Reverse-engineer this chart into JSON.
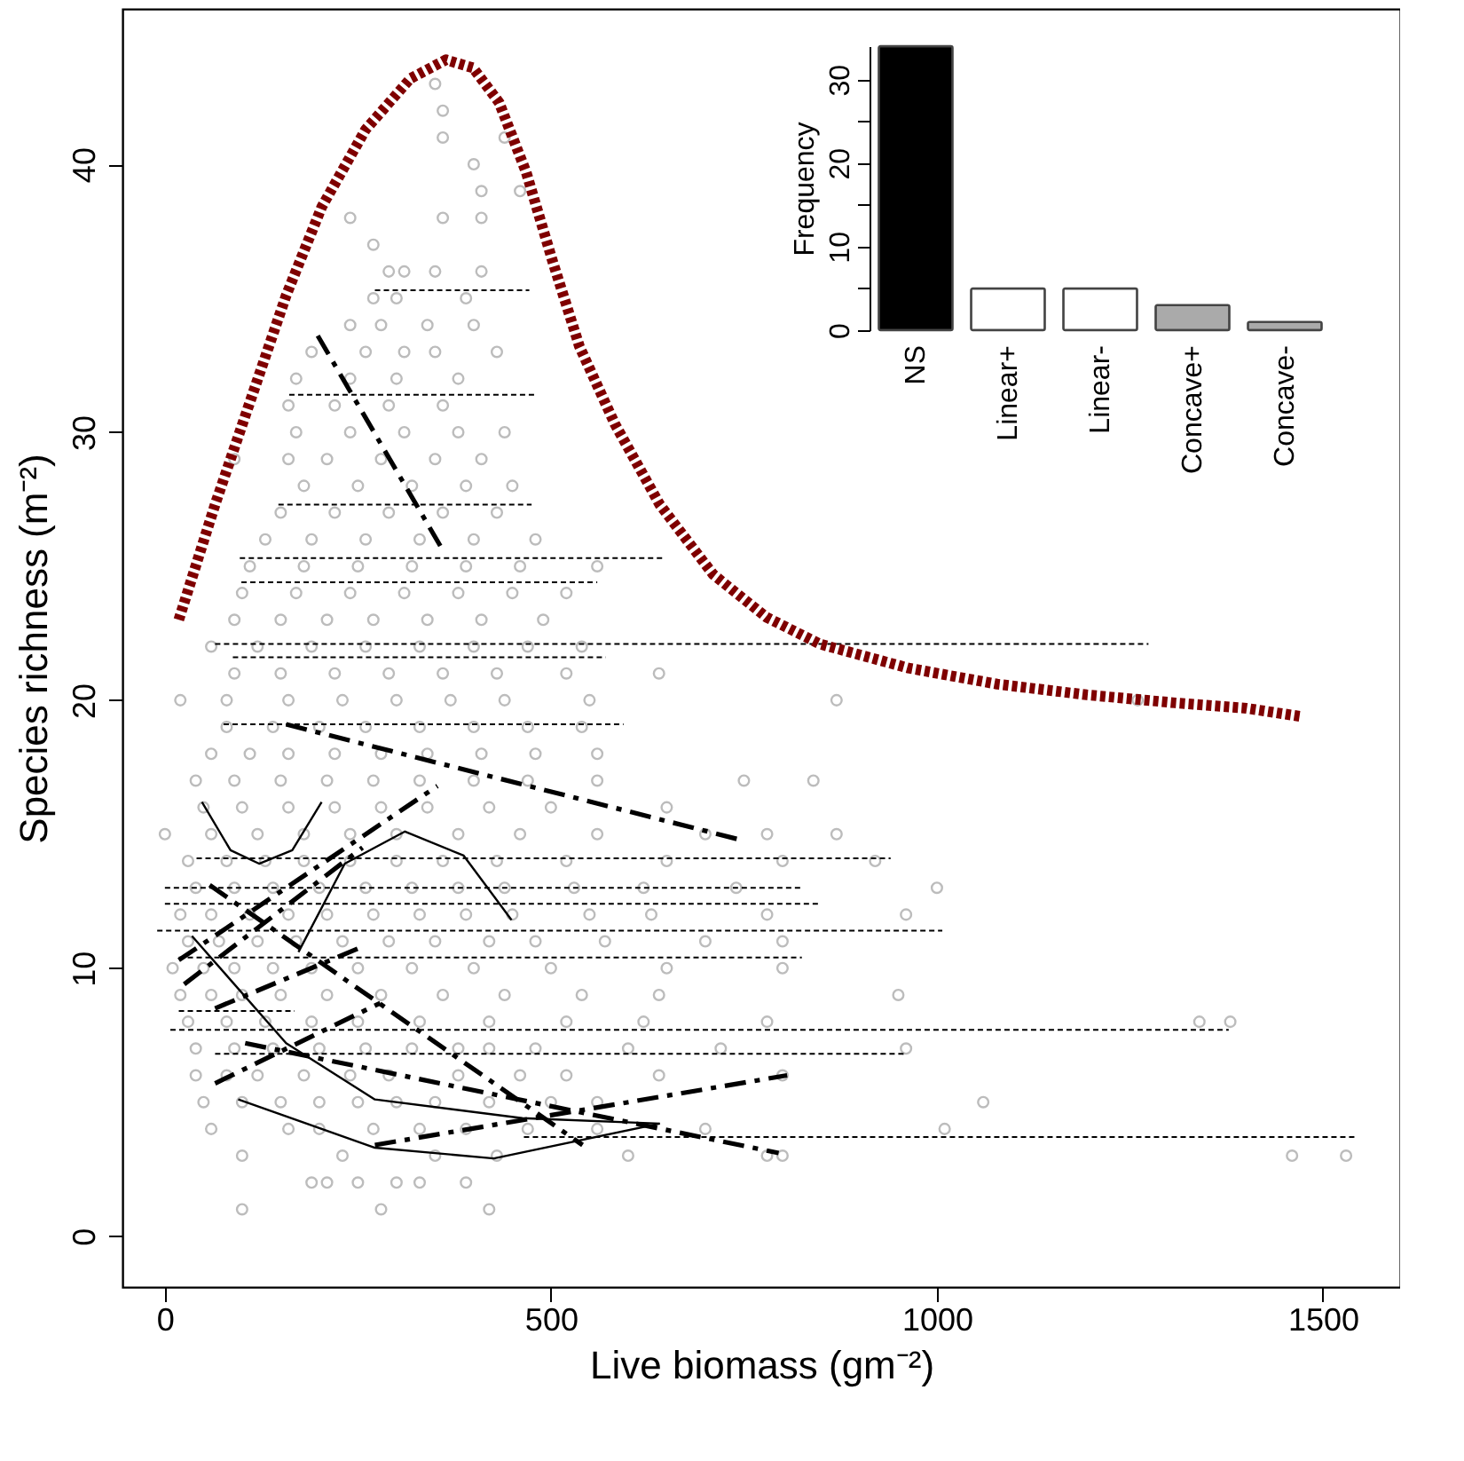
{
  "chart_data": [
    {
      "type": "scatter",
      "xlabel": "Live biomass  (gm⁻²)",
      "ylabel": "Species richness (m⁻²)",
      "xlim": [
        -55,
        1600
      ],
      "ylim": [
        -1.9,
        45.8
      ],
      "xticks": [
        0,
        500,
        1000,
        1500
      ],
      "yticks": [
        0,
        10,
        20,
        30,
        40
      ],
      "series": [
        {
          "type": "scatter",
          "marker": "circle",
          "color": "#a0a0a0",
          "x": [
            100,
            280,
            420
          ],
          "values": [
            1,
            1,
            1
          ]
        },
        {
          "type": "scatter",
          "marker": "circle",
          "color": "#a0a0a0",
          "x": [
            190,
            210,
            250,
            300,
            330,
            390
          ],
          "values": [
            2,
            2,
            2,
            2,
            2,
            2
          ]
        },
        {
          "type": "scatter",
          "marker": "circle",
          "color": "#a0a0a0",
          "x": [
            100,
            230,
            350,
            430,
            600,
            780,
            800,
            1460,
            1530
          ],
          "values": [
            3,
            3,
            3,
            3,
            3,
            3,
            3,
            3,
            3
          ]
        },
        {
          "type": "scatter",
          "marker": "circle",
          "color": "#a0a0a0",
          "x": [
            60,
            160,
            200,
            270,
            330,
            390,
            470,
            560,
            700,
            1010
          ],
          "values": [
            4,
            4,
            4,
            4,
            4,
            4,
            4,
            4,
            4,
            4
          ]
        },
        {
          "type": "scatter",
          "marker": "circle",
          "color": "#a0a0a0",
          "x": [
            50,
            100,
            150,
            200,
            250,
            300,
            350,
            420,
            500,
            560,
            1060
          ],
          "values": [
            5,
            5,
            5,
            5,
            5,
            5,
            5,
            5,
            5,
            5,
            5
          ]
        },
        {
          "type": "scatter",
          "marker": "circle",
          "color": "#a0a0a0",
          "x": [
            40,
            80,
            120,
            180,
            240,
            290,
            380,
            460,
            520,
            640,
            800
          ],
          "values": [
            6,
            6,
            6,
            6,
            6,
            6,
            6,
            6,
            6,
            6,
            6
          ]
        },
        {
          "type": "scatter",
          "marker": "circle",
          "color": "#a0a0a0",
          "x": [
            40,
            90,
            140,
            200,
            260,
            320,
            380,
            420,
            480,
            600,
            720,
            960
          ],
          "values": [
            7,
            7,
            7,
            7,
            7,
            7,
            7,
            7,
            7,
            7,
            7,
            7
          ]
        },
        {
          "type": "scatter",
          "marker": "circle",
          "color": "#a0a0a0",
          "x": [
            30,
            80,
            130,
            190,
            250,
            330,
            420,
            520,
            620,
            780,
            1340,
            1380
          ],
          "values": [
            8,
            8,
            8,
            8,
            8,
            8,
            8,
            8,
            8,
            8,
            8,
            8
          ]
        },
        {
          "type": "scatter",
          "marker": "circle",
          "color": "#a0a0a0",
          "x": [
            20,
            60,
            100,
            150,
            210,
            280,
            360,
            440,
            540,
            640,
            950
          ],
          "values": [
            9,
            9,
            9,
            9,
            9,
            9,
            9,
            9,
            9,
            9,
            9
          ]
        },
        {
          "type": "scatter",
          "marker": "circle",
          "color": "#a0a0a0",
          "x": [
            10,
            50,
            90,
            140,
            190,
            250,
            320,
            400,
            500,
            650,
            800
          ],
          "values": [
            10,
            10,
            10,
            10,
            10,
            10,
            10,
            10,
            10,
            10,
            10
          ]
        },
        {
          "type": "scatter",
          "marker": "circle",
          "color": "#a0a0a0",
          "x": [
            30,
            70,
            120,
            170,
            230,
            290,
            350,
            420,
            480,
            570,
            700,
            800
          ],
          "values": [
            11,
            11,
            11,
            11,
            11,
            11,
            11,
            11,
            11,
            11,
            11,
            11
          ]
        },
        {
          "type": "scatter",
          "marker": "circle",
          "color": "#a0a0a0",
          "x": [
            20,
            60,
            110,
            160,
            210,
            270,
            330,
            390,
            450,
            550,
            630,
            780,
            960
          ],
          "values": [
            12,
            12,
            12,
            12,
            12,
            12,
            12,
            12,
            12,
            12,
            12,
            12,
            12
          ]
        },
        {
          "type": "scatter",
          "marker": "circle",
          "color": "#a0a0a0",
          "x": [
            40,
            90,
            140,
            200,
            260,
            320,
            380,
            440,
            530,
            620,
            740,
            1000
          ],
          "values": [
            13,
            13,
            13,
            13,
            13,
            13,
            13,
            13,
            13,
            13,
            13,
            13
          ]
        },
        {
          "type": "scatter",
          "marker": "circle",
          "color": "#a0a0a0",
          "x": [
            30,
            80,
            130,
            180,
            240,
            300,
            360,
            430,
            520,
            650,
            800,
            920
          ],
          "values": [
            14,
            14,
            14,
            14,
            14,
            14,
            14,
            14,
            14,
            14,
            14,
            14
          ]
        },
        {
          "type": "scatter",
          "marker": "circle",
          "color": "#a0a0a0",
          "x": [
            0,
            60,
            120,
            180,
            240,
            300,
            380,
            460,
            560,
            700,
            780,
            870
          ],
          "values": [
            15,
            15,
            15,
            15,
            15,
            15,
            15,
            15,
            15,
            15,
            15,
            15
          ]
        },
        {
          "type": "scatter",
          "marker": "circle",
          "color": "#a0a0a0",
          "x": [
            50,
            100,
            160,
            220,
            280,
            340,
            420,
            500,
            650
          ],
          "values": [
            16,
            16,
            16,
            16,
            16,
            16,
            16,
            16,
            16
          ]
        },
        {
          "type": "scatter",
          "marker": "circle",
          "color": "#a0a0a0",
          "x": [
            40,
            90,
            150,
            210,
            270,
            330,
            400,
            470,
            560,
            750,
            840
          ],
          "values": [
            17,
            17,
            17,
            17,
            17,
            17,
            17,
            17,
            17,
            17,
            17
          ]
        },
        {
          "type": "scatter",
          "marker": "circle",
          "color": "#a0a0a0",
          "x": [
            60,
            110,
            160,
            220,
            280,
            340,
            410,
            480,
            560
          ],
          "values": [
            18,
            18,
            18,
            18,
            18,
            18,
            18,
            18,
            18
          ]
        },
        {
          "type": "scatter",
          "marker": "circle",
          "color": "#a0a0a0",
          "x": [
            80,
            140,
            200,
            260,
            330,
            400,
            470,
            540
          ],
          "values": [
            19,
            19,
            19,
            19,
            19,
            19,
            19,
            19
          ]
        },
        {
          "type": "scatter",
          "marker": "circle",
          "color": "#a0a0a0",
          "x": [
            20,
            80,
            160,
            230,
            300,
            370,
            440,
            550,
            870,
            1260
          ],
          "values": [
            20,
            20,
            20,
            20,
            20,
            20,
            20,
            20,
            20,
            20
          ]
        },
        {
          "type": "scatter",
          "marker": "circle",
          "color": "#a0a0a0",
          "x": [
            90,
            150,
            220,
            290,
            360,
            430,
            520,
            640
          ],
          "values": [
            21,
            21,
            21,
            21,
            21,
            21,
            21,
            21
          ]
        },
        {
          "type": "scatter",
          "marker": "circle",
          "color": "#a0a0a0",
          "x": [
            60,
            120,
            190,
            260,
            330,
            400,
            470,
            540
          ],
          "values": [
            22,
            22,
            22,
            22,
            22,
            22,
            22,
            22
          ]
        },
        {
          "type": "scatter",
          "marker": "circle",
          "color": "#a0a0a0",
          "x": [
            90,
            150,
            210,
            270,
            340,
            410,
            490
          ],
          "values": [
            23,
            23,
            23,
            23,
            23,
            23,
            23
          ]
        },
        {
          "type": "scatter",
          "marker": "circle",
          "color": "#a0a0a0",
          "x": [
            100,
            170,
            240,
            310,
            380,
            450,
            520
          ],
          "values": [
            24,
            24,
            24,
            24,
            24,
            24,
            24
          ]
        },
        {
          "type": "scatter",
          "marker": "circle",
          "color": "#a0a0a0",
          "x": [
            110,
            180,
            250,
            320,
            390,
            460,
            560
          ],
          "values": [
            25,
            25,
            25,
            25,
            25,
            25,
            25
          ]
        },
        {
          "type": "scatter",
          "marker": "circle",
          "color": "#a0a0a0",
          "x": [
            130,
            190,
            260,
            330,
            400,
            480
          ],
          "values": [
            26,
            26,
            26,
            26,
            26,
            26
          ]
        },
        {
          "type": "scatter",
          "marker": "circle",
          "color": "#a0a0a0",
          "x": [
            150,
            220,
            290,
            360,
            430
          ],
          "values": [
            27,
            27,
            27,
            27,
            27
          ]
        },
        {
          "type": "scatter",
          "marker": "circle",
          "color": "#a0a0a0",
          "x": [
            180,
            250,
            320,
            390,
            450
          ],
          "values": [
            28,
            28,
            28,
            28,
            28
          ]
        },
        {
          "type": "scatter",
          "marker": "circle",
          "color": "#a0a0a0",
          "x": [
            90,
            160,
            210,
            280,
            350,
            410
          ],
          "values": [
            29,
            29,
            29,
            29,
            29,
            29
          ]
        },
        {
          "type": "scatter",
          "marker": "circle",
          "color": "#a0a0a0",
          "x": [
            170,
            240,
            310,
            380,
            440
          ],
          "values": [
            30,
            30,
            30,
            30,
            30
          ]
        },
        {
          "type": "scatter",
          "marker": "circle",
          "color": "#a0a0a0",
          "x": [
            160,
            220,
            290,
            360
          ],
          "values": [
            31,
            31,
            31,
            31
          ]
        },
        {
          "type": "scatter",
          "marker": "circle",
          "color": "#a0a0a0",
          "x": [
            170,
            240,
            300,
            380
          ],
          "values": [
            32,
            32,
            32,
            32
          ]
        },
        {
          "type": "scatter",
          "marker": "circle",
          "color": "#a0a0a0",
          "x": [
            190,
            260,
            310,
            350,
            430
          ],
          "values": [
            33,
            33,
            33,
            33,
            33
          ]
        },
        {
          "type": "scatter",
          "marker": "circle",
          "color": "#a0a0a0",
          "x": [
            240,
            280,
            340,
            400
          ],
          "values": [
            34,
            34,
            34,
            34
          ]
        },
        {
          "type": "scatter",
          "marker": "circle",
          "color": "#a0a0a0",
          "x": [
            270,
            300,
            390
          ],
          "values": [
            35,
            35,
            35
          ]
        },
        {
          "type": "scatter",
          "marker": "circle",
          "color": "#a0a0a0",
          "x": [
            290,
            310,
            350,
            410
          ],
          "values": [
            36,
            36,
            36,
            36
          ]
        },
        {
          "type": "scatter",
          "marker": "circle",
          "color": "#a0a0a0",
          "x": [
            270
          ],
          "values": [
            37
          ]
        },
        {
          "type": "scatter",
          "marker": "circle",
          "color": "#a0a0a0",
          "x": [
            240,
            360,
            410
          ],
          "values": [
            38,
            38,
            38
          ]
        },
        {
          "type": "scatter",
          "marker": "circle",
          "color": "#a0a0a0",
          "x": [
            410,
            460
          ],
          "values": [
            39,
            39
          ]
        },
        {
          "type": "scatter",
          "marker": "circle",
          "color": "#a0a0a0",
          "x": [
            400
          ],
          "values": [
            40
          ]
        },
        {
          "type": "scatter",
          "marker": "circle",
          "color": "#a0a0a0",
          "x": [
            360,
            440
          ],
          "values": [
            41,
            41
          ]
        },
        {
          "type": "scatter",
          "marker": "circle",
          "color": "#a0a0a0",
          "x": [
            360
          ],
          "values": [
            42
          ]
        },
        {
          "type": "scatter",
          "marker": "circle",
          "color": "#a0a0a0",
          "x": [
            350
          ],
          "values": [
            43
          ]
        },
        {
          "type": "line",
          "color": "#000000",
          "line_style": "dotted",
          "x": [
            272,
            472
          ],
          "values": [
            35.3,
            35.3
          ]
        },
        {
          "type": "line",
          "color": "#000000",
          "line_style": "dotted",
          "x": [
            161,
            479
          ],
          "values": [
            31.4,
            31.4
          ]
        },
        {
          "type": "line",
          "color": "#000000",
          "line_style": "dotted",
          "x": [
            147,
            475
          ],
          "values": [
            27.3,
            27.3
          ]
        },
        {
          "type": "line",
          "color": "#000000",
          "line_style": "dotted",
          "x": [
            97,
            645
          ],
          "values": [
            25.3,
            25.3
          ]
        },
        {
          "type": "line",
          "color": "#000000",
          "line_style": "dotted",
          "x": [
            99,
            560
          ],
          "values": [
            24.4,
            24.4
          ]
        },
        {
          "type": "line",
          "color": "#000000",
          "line_style": "dotted",
          "x": [
            65,
            1274
          ],
          "values": [
            22.1,
            22.1
          ]
        },
        {
          "type": "line",
          "color": "#000000",
          "line_style": "dotted",
          "x": [
            88,
            571
          ],
          "values": [
            21.6,
            21.6
          ]
        },
        {
          "type": "line",
          "color": "#000000",
          "line_style": "dotted",
          "x": [
            76,
            594
          ],
          "values": [
            19.1,
            19.1
          ]
        },
        {
          "type": "line",
          "color": "#000000",
          "line_style": "dotted",
          "x": [
            41,
            940
          ],
          "values": [
            14.1,
            14.1
          ]
        },
        {
          "type": "line",
          "color": "#000000",
          "line_style": "dotted",
          "x": [
            0,
            825
          ],
          "values": [
            13.0,
            13.0
          ]
        },
        {
          "type": "line",
          "color": "#000000",
          "line_style": "dotted",
          "x": [
            0,
            850
          ],
          "values": [
            12.4,
            12.4
          ]
        },
        {
          "type": "line",
          "color": "#000000",
          "line_style": "dotted",
          "x": [
            -10,
            1007
          ],
          "values": [
            11.4,
            11.4
          ]
        },
        {
          "type": "line",
          "color": "#000000",
          "line_style": "dotted",
          "x": [
            18,
            825
          ],
          "values": [
            10.4,
            10.4
          ]
        },
        {
          "type": "line",
          "color": "#000000",
          "line_style": "dotted",
          "x": [
            18,
            168
          ],
          "values": [
            8.4,
            8.4
          ]
        },
        {
          "type": "line",
          "color": "#000000",
          "line_style": "dotted",
          "x": [
            7,
            1378
          ],
          "values": [
            7.7,
            7.7
          ]
        },
        {
          "type": "line",
          "color": "#000000",
          "line_style": "dotted",
          "x": [
            65,
            960
          ],
          "values": [
            6.8,
            6.8
          ]
        },
        {
          "type": "line",
          "color": "#000000",
          "line_style": "dotted",
          "x": [
            465,
            1545
          ],
          "values": [
            3.7,
            3.7
          ]
        },
        {
          "type": "line",
          "color": "#000000",
          "line_style": "dashed",
          "x": [
            198,
            362
          ],
          "values": [
            33.6,
            25.5
          ]
        },
        {
          "type": "line",
          "color": "#000000",
          "line_style": "dashed",
          "x": [
            157,
            744
          ],
          "values": [
            19.1,
            14.8
          ]
        },
        {
          "type": "line",
          "color": "#000000",
          "line_style": "dashed",
          "x": [
            18,
            353
          ],
          "values": [
            10.3,
            16.8
          ]
        },
        {
          "type": "line",
          "color": "#000000",
          "line_style": "dashed",
          "x": [
            25,
            256
          ],
          "values": [
            9.4,
            14.5
          ]
        },
        {
          "type": "line",
          "color": "#000000",
          "line_style": "dashed",
          "x": [
            65,
            256
          ],
          "values": [
            8.5,
            10.8
          ]
        },
        {
          "type": "line",
          "color": "#000000",
          "line_style": "dashed",
          "x": [
            65,
            279
          ],
          "values": [
            5.7,
            8.7
          ]
        },
        {
          "type": "line",
          "color": "#000000",
          "line_style": "dashed",
          "x": [
            272,
            806
          ],
          "values": [
            3.4,
            6.0
          ]
        },
        {
          "type": "line",
          "color": "#000000",
          "line_style": "dashed",
          "x": [
            58,
            541
          ],
          "values": [
            13.1,
            3.4
          ]
        },
        {
          "type": "line",
          "color": "#000000",
          "line_style": "dashed",
          "x": [
            104,
            795
          ],
          "values": [
            7.2,
            3.1
          ]
        },
        {
          "type": "line",
          "color": "#000000",
          "line_style": "solid",
          "x": [
            48,
            85,
            122,
            165,
            203
          ],
          "values": [
            16.2,
            14.4,
            13.9,
            14.4,
            16.2
          ]
        },
        {
          "type": "line",
          "color": "#000000",
          "line_style": "solid",
          "x": [
            35,
            157,
            272,
            463,
            641
          ],
          "values": [
            11.2,
            7.2,
            5.1,
            4.4,
            4.2
          ]
        },
        {
          "type": "line",
          "color": "#000000",
          "line_style": "solid",
          "x": [
            173,
            233,
            311,
            387,
            449
          ],
          "values": [
            10.6,
            13.9,
            15.1,
            14.2,
            11.8
          ]
        },
        {
          "type": "line",
          "color": "#000000",
          "line_style": "solid",
          "x": [
            95,
            272,
            426,
            641
          ],
          "values": [
            5.1,
            3.3,
            2.9,
            4.2
          ]
        },
        {
          "type": "line",
          "color": "#7f0000",
          "line_style": "dotted",
          "x": [
            18,
            65,
            111,
            157,
            203,
            260,
            318,
            364,
            399,
            433,
            468,
            502,
            537,
            583,
            641,
            710,
            779,
            848,
            963,
            1078,
            1194,
            1309,
            1401,
            1470
          ],
          "values": [
            23.0,
            27.3,
            31.2,
            35.1,
            38.4,
            41.3,
            43.2,
            43.9,
            43.6,
            42.3,
            39.7,
            36.4,
            33.2,
            30.3,
            27.3,
            24.7,
            23.1,
            22.1,
            21.2,
            20.6,
            20.2,
            19.9,
            19.7,
            19.4
          ]
        }
      ]
    },
    {
      "type": "bar",
      "ylabel": "Frequency",
      "categories": [
        "NS",
        "Linear+",
        "Linear-",
        "Concave+",
        "Concave-"
      ],
      "values": [
        34,
        5,
        5,
        3,
        1
      ],
      "colors": [
        "#000000",
        "#ffffff",
        "#ffffff",
        "#aaaaaa",
        "#aaaaaa"
      ],
      "ylim": [
        0,
        34
      ],
      "yticks": [
        0,
        {
          "value": 5,
          "label": null
        },
        10,
        {
          "value": 15,
          "label": null
        },
        20,
        {
          "value": 25,
          "label": null
        },
        30
      ]
    }
  ]
}
